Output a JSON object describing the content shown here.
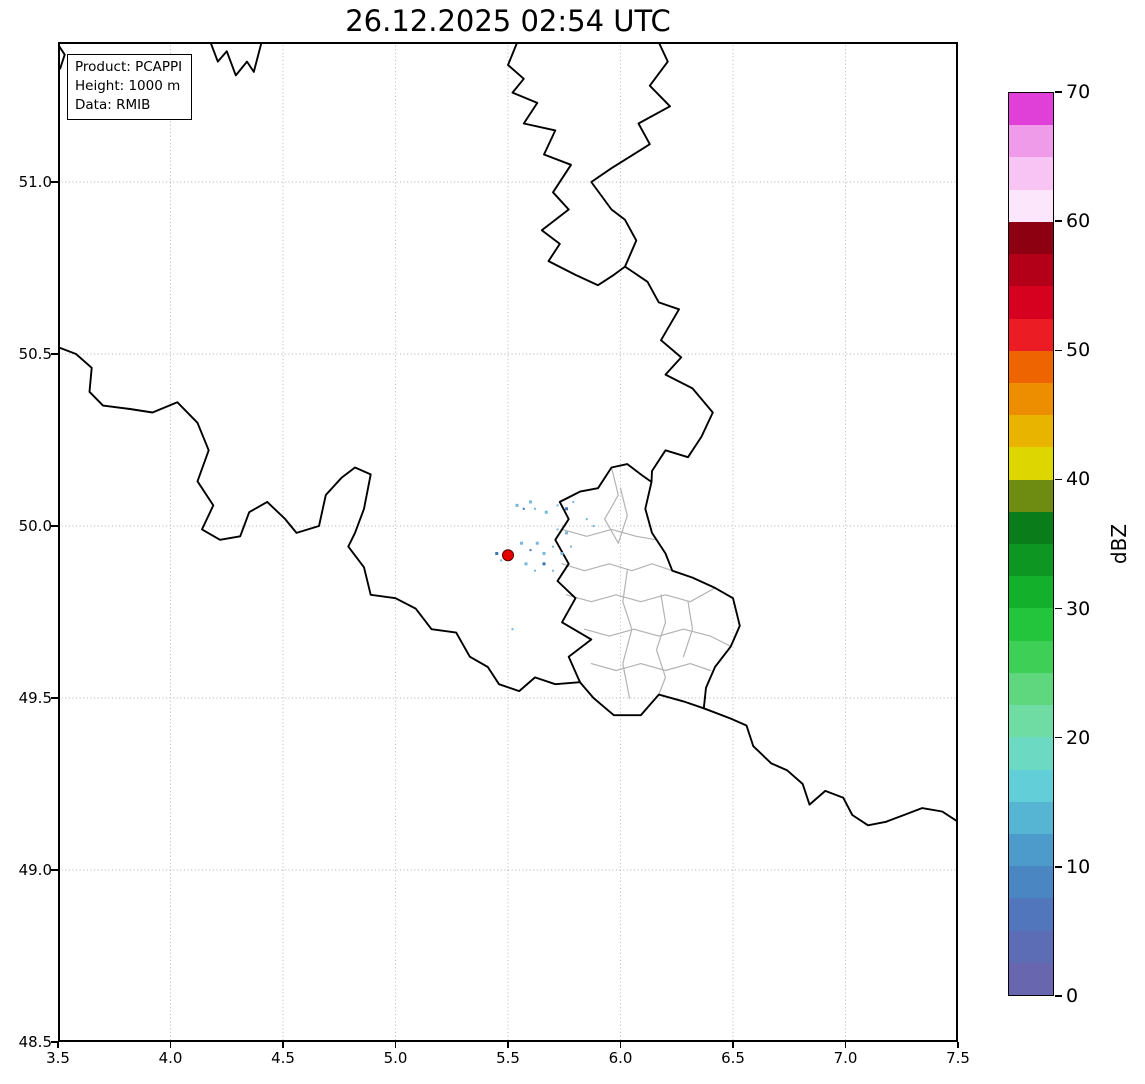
{
  "title": "26.12.2025 02:54 UTC",
  "info_box": {
    "lines": [
      "Product: PCAPPI",
      "Height: 1000 m",
      "Data: RMIB"
    ]
  },
  "axes": {
    "x_range": [
      3.5,
      7.5
    ],
    "y_range": [
      48.5,
      51.407
    ],
    "x_ticks": [
      {
        "value": 3.5,
        "label": "3.5"
      },
      {
        "value": 4.0,
        "label": "4.0"
      },
      {
        "value": 4.5,
        "label": "4.5"
      },
      {
        "value": 5.0,
        "label": "5.0"
      },
      {
        "value": 5.5,
        "label": "5.5"
      },
      {
        "value": 6.0,
        "label": "6.0"
      },
      {
        "value": 6.5,
        "label": "6.5"
      },
      {
        "value": 7.0,
        "label": "7.0"
      },
      {
        "value": 7.5,
        "label": "7.5"
      }
    ],
    "y_ticks": [
      {
        "value": 51.0,
        "label": "51.0"
      },
      {
        "value": 50.5,
        "label": "50.5"
      },
      {
        "value": 50.0,
        "label": "50.0"
      },
      {
        "value": 49.5,
        "label": "49.5"
      },
      {
        "value": 49.0,
        "label": "49.0"
      },
      {
        "value": 48.5,
        "label": "48.5"
      }
    ],
    "grid_color": "#b0b0b0"
  },
  "colorbar": {
    "label": "dBZ",
    "min": 0,
    "max": 70,
    "step": 2.5,
    "tick_values": [
      70,
      60,
      50,
      40,
      30,
      20,
      10,
      0
    ],
    "tick_labels": [
      "70",
      "60",
      "50",
      "40",
      "30",
      "20",
      "10",
      "0"
    ],
    "colors_bottom_to_top": [
      "#6766ae",
      "#5c6cb5",
      "#5276bc",
      "#4a86c2",
      "#4d9bcb",
      "#57b5d4",
      "#62cfd8",
      "#6cd9c3",
      "#6fdca4",
      "#5ed77f",
      "#3ecf57",
      "#23c53c",
      "#13b02c",
      "#0d9722",
      "#0a7d1a",
      "#6e8c12",
      "#ded600",
      "#e8b400",
      "#ec8e00",
      "#ee6400",
      "#ec1c24",
      "#d6001f",
      "#b30018",
      "#8d0011",
      "#fbe6fb",
      "#f7c4f3",
      "#f09aea",
      "#e03fd8"
    ]
  },
  "map": {
    "colors": {
      "border": "#000000",
      "canton": "#b3b3b3",
      "echo_light": "#79b6dc",
      "echo_dark": "#3c74b4",
      "marker_fill": "#e50000",
      "marker_edge": "#550000"
    },
    "radar_marker": {
      "lon": 5.5,
      "lat": 49.915,
      "radius": 5.5
    },
    "borders": {
      "scheldt_fragment": [
        [
          3.5,
          51.4
        ],
        [
          3.53,
          51.37
        ],
        [
          3.51,
          51.33
        ]
      ],
      "be_nl_north": [
        [
          4.17,
          51.42
        ],
        [
          4.21,
          51.35
        ],
        [
          4.25,
          51.38
        ],
        [
          4.29,
          51.31
        ],
        [
          4.34,
          51.35
        ],
        [
          4.37,
          51.32
        ],
        [
          4.41,
          51.42
        ]
      ],
      "be_nl_meuse_west": [
        [
          5.55,
          51.42
        ],
        [
          5.5,
          51.34
        ],
        [
          5.57,
          51.3
        ],
        [
          5.52,
          51.26
        ],
        [
          5.63,
          51.23
        ],
        [
          5.57,
          51.17
        ],
        [
          5.71,
          51.15
        ],
        [
          5.66,
          51.08
        ],
        [
          5.78,
          51.05
        ],
        [
          5.7,
          50.97
        ],
        [
          5.77,
          50.92
        ],
        [
          5.65,
          50.86
        ],
        [
          5.73,
          50.82
        ],
        [
          5.68,
          50.77
        ],
        [
          5.8,
          50.73
        ],
        [
          5.9,
          50.7
        ],
        [
          5.97,
          50.73
        ],
        [
          6.02,
          50.754
        ]
      ],
      "nl_de_meuse_east": [
        [
          6.16,
          51.42
        ],
        [
          6.21,
          51.35
        ],
        [
          6.13,
          51.28
        ],
        [
          6.22,
          51.22
        ],
        [
          6.08,
          51.17
        ],
        [
          6.13,
          51.11
        ],
        [
          5.96,
          51.04
        ],
        [
          5.87,
          51.0
        ],
        [
          5.96,
          50.92
        ],
        [
          6.02,
          50.89
        ],
        [
          6.07,
          50.83
        ],
        [
          6.02,
          50.754
        ]
      ],
      "be_de": [
        [
          6.02,
          50.754
        ],
        [
          6.12,
          50.71
        ],
        [
          6.17,
          50.65
        ],
        [
          6.26,
          50.63
        ],
        [
          6.18,
          50.54
        ],
        [
          6.27,
          50.49
        ],
        [
          6.2,
          50.44
        ],
        [
          6.32,
          50.4
        ],
        [
          6.41,
          50.33
        ],
        [
          6.36,
          50.26
        ],
        [
          6.3,
          50.2
        ],
        [
          6.2,
          50.22
        ],
        [
          6.14,
          50.16
        ],
        [
          6.138,
          50.128
        ]
      ],
      "luxembourg": [
        [
          6.138,
          50.128
        ],
        [
          6.11,
          50.05
        ],
        [
          6.14,
          49.98
        ],
        [
          6.2,
          49.92
        ],
        [
          6.23,
          49.87
        ],
        [
          6.32,
          49.85
        ],
        [
          6.42,
          49.82
        ],
        [
          6.5,
          49.79
        ],
        [
          6.53,
          49.71
        ],
        [
          6.49,
          49.65
        ],
        [
          6.42,
          49.59
        ],
        [
          6.38,
          49.53
        ],
        [
          6.37,
          49.47
        ],
        [
          6.28,
          49.49
        ],
        [
          6.17,
          49.51
        ],
        [
          6.09,
          49.45
        ],
        [
          5.97,
          49.45
        ],
        [
          5.88,
          49.5
        ],
        [
          5.82,
          49.546
        ],
        [
          5.77,
          49.62
        ],
        [
          5.87,
          49.67
        ],
        [
          5.74,
          49.72
        ],
        [
          5.8,
          49.79
        ],
        [
          5.72,
          49.84
        ],
        [
          5.77,
          49.89
        ],
        [
          5.71,
          49.96
        ],
        [
          5.77,
          50.02
        ],
        [
          5.73,
          50.07
        ],
        [
          5.82,
          50.1
        ],
        [
          5.9,
          50.11
        ],
        [
          5.96,
          50.17
        ],
        [
          6.03,
          50.18
        ],
        [
          6.09,
          50.15
        ],
        [
          6.138,
          50.128
        ]
      ],
      "be_fr": [
        [
          3.5,
          50.52
        ],
        [
          3.58,
          50.5
        ],
        [
          3.65,
          50.46
        ],
        [
          3.64,
          50.39
        ],
        [
          3.7,
          50.35
        ],
        [
          3.82,
          50.34
        ],
        [
          3.92,
          50.33
        ],
        [
          4.03,
          50.36
        ],
        [
          4.12,
          50.3
        ],
        [
          4.17,
          50.22
        ],
        [
          4.12,
          50.13
        ],
        [
          4.19,
          50.06
        ],
        [
          4.14,
          49.99
        ],
        [
          4.22,
          49.96
        ],
        [
          4.31,
          49.97
        ],
        [
          4.35,
          50.04
        ],
        [
          4.43,
          50.07
        ],
        [
          4.51,
          50.02
        ],
        [
          4.56,
          49.98
        ],
        [
          4.66,
          50.0
        ],
        [
          4.69,
          50.09
        ],
        [
          4.76,
          50.14
        ],
        [
          4.82,
          50.17
        ],
        [
          4.89,
          50.15
        ],
        [
          4.86,
          50.05
        ],
        [
          4.82,
          49.98
        ],
        [
          4.79,
          49.94
        ],
        [
          4.86,
          49.88
        ],
        [
          4.89,
          49.8
        ],
        [
          5.0,
          49.79
        ],
        [
          5.09,
          49.76
        ],
        [
          5.16,
          49.7
        ],
        [
          5.27,
          49.69
        ],
        [
          5.33,
          49.62
        ],
        [
          5.41,
          49.59
        ],
        [
          5.46,
          49.54
        ],
        [
          5.55,
          49.52
        ],
        [
          5.62,
          49.56
        ],
        [
          5.71,
          49.54
        ],
        [
          5.82,
          49.546
        ]
      ],
      "fr_de": [
        [
          6.37,
          49.47
        ],
        [
          6.49,
          49.44
        ],
        [
          6.56,
          49.42
        ],
        [
          6.59,
          49.36
        ],
        [
          6.67,
          49.31
        ],
        [
          6.74,
          49.29
        ],
        [
          6.81,
          49.25
        ],
        [
          6.84,
          49.19
        ],
        [
          6.91,
          49.23
        ],
        [
          6.99,
          49.21
        ],
        [
          7.03,
          49.16
        ],
        [
          7.1,
          49.13
        ],
        [
          7.18,
          49.14
        ],
        [
          7.26,
          49.16
        ],
        [
          7.34,
          49.18
        ],
        [
          7.43,
          49.17
        ],
        [
          7.5,
          49.14
        ]
      ]
    },
    "cantons": [
      [
        [
          5.96,
          50.17
        ],
        [
          5.99,
          50.09
        ],
        [
          5.93,
          50.02
        ],
        [
          5.99,
          49.95
        ]
      ],
      [
        [
          5.74,
          49.99
        ],
        [
          5.85,
          49.97
        ],
        [
          5.96,
          49.99
        ],
        [
          6.07,
          49.97
        ],
        [
          6.16,
          49.96
        ]
      ],
      [
        [
          5.74,
          49.89
        ],
        [
          5.84,
          49.87
        ],
        [
          5.95,
          49.89
        ],
        [
          6.05,
          49.87
        ],
        [
          6.14,
          49.89
        ],
        [
          6.23,
          49.87
        ]
      ],
      [
        [
          5.76,
          49.8
        ],
        [
          5.87,
          49.78
        ],
        [
          5.98,
          49.8
        ],
        [
          6.09,
          49.78
        ],
        [
          6.2,
          49.8
        ],
        [
          6.31,
          49.78
        ],
        [
          6.42,
          49.82
        ]
      ],
      [
        [
          5.84,
          49.7
        ],
        [
          5.95,
          49.68
        ],
        [
          6.06,
          49.7
        ],
        [
          6.17,
          49.68
        ],
        [
          6.28,
          49.7
        ],
        [
          6.4,
          49.68
        ],
        [
          6.49,
          49.65
        ]
      ],
      [
        [
          5.87,
          49.6
        ],
        [
          5.98,
          49.58
        ],
        [
          6.09,
          49.6
        ],
        [
          6.2,
          49.58
        ],
        [
          6.31,
          49.6
        ],
        [
          6.4,
          49.58
        ]
      ],
      [
        [
          6.03,
          49.87
        ],
        [
          6.01,
          49.78
        ],
        [
          6.05,
          49.7
        ],
        [
          6.01,
          49.6
        ],
        [
          6.04,
          49.5
        ]
      ],
      [
        [
          6.18,
          49.8
        ],
        [
          6.2,
          49.72
        ],
        [
          6.16,
          49.64
        ],
        [
          6.2,
          49.56
        ],
        [
          6.17,
          49.51
        ]
      ],
      [
        [
          6.0,
          50.11
        ],
        [
          6.03,
          50.03
        ],
        [
          5.99,
          49.95
        ]
      ],
      [
        [
          6.3,
          49.78
        ],
        [
          6.32,
          49.7
        ],
        [
          6.28,
          49.62
        ]
      ]
    ],
    "echoes": [
      [
        5.54,
        50.06,
        3,
        "l"
      ],
      [
        5.57,
        50.05,
        2,
        "d"
      ],
      [
        5.6,
        50.07,
        3,
        "l"
      ],
      [
        5.62,
        50.05,
        2,
        "l"
      ],
      [
        5.67,
        50.04,
        3,
        "l"
      ],
      [
        5.72,
        50.06,
        2,
        "l"
      ],
      [
        5.76,
        50.05,
        3,
        "d"
      ],
      [
        5.79,
        50.07,
        2,
        "l"
      ],
      [
        5.72,
        49.99,
        2,
        "l"
      ],
      [
        5.76,
        49.98,
        3,
        "l"
      ],
      [
        5.56,
        49.95,
        3,
        "l"
      ],
      [
        5.6,
        49.93,
        2,
        "d"
      ],
      [
        5.63,
        49.95,
        3,
        "l"
      ],
      [
        5.66,
        49.92,
        3,
        "l"
      ],
      [
        5.7,
        49.94,
        2,
        "l"
      ],
      [
        5.74,
        49.92,
        3,
        "l"
      ],
      [
        5.78,
        49.94,
        2,
        "l"
      ],
      [
        5.58,
        49.89,
        3,
        "l"
      ],
      [
        5.62,
        49.87,
        2,
        "l"
      ],
      [
        5.66,
        49.89,
        3,
        "d"
      ],
      [
        5.7,
        49.87,
        2,
        "l"
      ],
      [
        5.45,
        49.92,
        3,
        "d"
      ],
      [
        5.47,
        49.9,
        2,
        "l"
      ],
      [
        5.85,
        50.02,
        2,
        "l"
      ],
      [
        5.88,
        50.0,
        2,
        "l"
      ],
      [
        5.52,
        49.7,
        2,
        "l"
      ]
    ]
  }
}
